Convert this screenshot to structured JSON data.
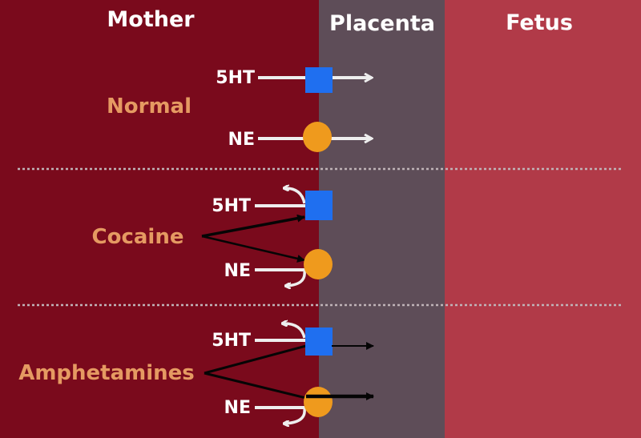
{
  "columns": {
    "mother": "Mother",
    "placenta": "Placenta",
    "fetus": "Fetus"
  },
  "conditions": {
    "normal": {
      "label": "Normal",
      "serotonin": "5HT",
      "norepinephrine": "NE"
    },
    "cocaine": {
      "label": "Cocaine",
      "serotonin": "5HT",
      "norepinephrine": "NE"
    },
    "amphetamines": {
      "label": "Amphetamines",
      "serotonin": "5HT",
      "norepinephrine": "NE"
    }
  },
  "colors": {
    "mother_region": "#7a0a1c",
    "placenta_region": "#5e4d58",
    "fetus_region": "#b13a48",
    "condition_text": "#e59a62",
    "transporter_5ht": "#1f6ff0",
    "transporter_ne": "#ef9a1d",
    "arrow": "#eeeeee",
    "drug_arrow": "#050505"
  },
  "icons": {
    "transporter_5ht": "blue-square-transporter-icon",
    "transporter_ne": "orange-circle-transporter-icon"
  }
}
